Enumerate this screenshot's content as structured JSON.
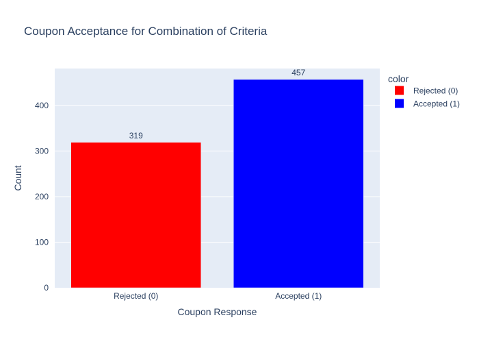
{
  "chart_data": {
    "type": "bar",
    "title": "Coupon Acceptance for Combination of Criteria",
    "xlabel": "Coupon Response",
    "ylabel": "Count",
    "categories": [
      "Rejected (0)",
      "Accepted (1)"
    ],
    "values": [
      319,
      457
    ],
    "data_labels": [
      "319",
      "457"
    ],
    "colors": [
      "#ff0000",
      "#0000ff"
    ],
    "ylim": [
      0,
      481.05
    ],
    "yticks": [
      0,
      100,
      200,
      300,
      400
    ],
    "ytick_labels": [
      "0",
      "100",
      "200",
      "300",
      "400"
    ],
    "grid": true,
    "legend": {
      "title": "color",
      "placement": "right",
      "entries": [
        {
          "label": "Rejected (0)",
          "color": "#ff0000"
        },
        {
          "label": "Accepted (1)",
          "color": "#0000ff"
        }
      ]
    },
    "plot_background": "#e5ecf6",
    "text_color": "#2a3f5f"
  }
}
